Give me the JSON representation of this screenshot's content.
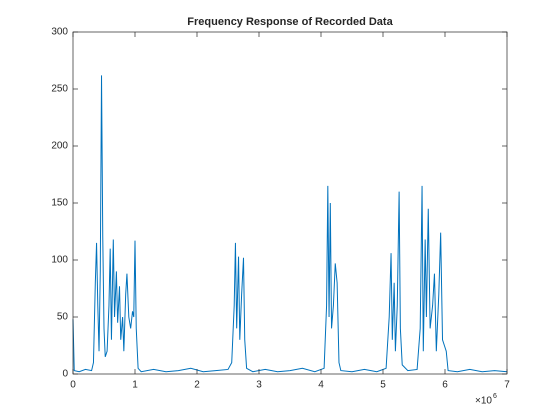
{
  "chart_data": {
    "type": "line",
    "title": "Frequency Response of Recorded Data",
    "x_multiplier": {
      "base": "×10",
      "exponent": "6"
    },
    "x": [
      0,
      20000,
      100000,
      200000,
      300000,
      330000,
      360000,
      380000,
      400000,
      420000,
      440000,
      460000,
      480000,
      500000,
      520000,
      550000,
      580000,
      600000,
      620000,
      650000,
      670000,
      700000,
      720000,
      750000,
      770000,
      800000,
      820000,
      850000,
      870000,
      900000,
      930000,
      960000,
      980000,
      1000000,
      1020000,
      1050000,
      1100000,
      1300000,
      1500000,
      1700000,
      1900000,
      2100000,
      2300000,
      2500000,
      2560000,
      2600000,
      2620000,
      2640000,
      2670000,
      2690000,
      2720000,
      2750000,
      2770000,
      2800000,
      2900000,
      3100000,
      3300000,
      3500000,
      3700000,
      3900000,
      4050000,
      4090000,
      4110000,
      4130000,
      4150000,
      4170000,
      4200000,
      4230000,
      4260000,
      4290000,
      4320000,
      4500000,
      4700000,
      4900000,
      5050000,
      5100000,
      5130000,
      5150000,
      5180000,
      5200000,
      5230000,
      5260000,
      5280000,
      5310000,
      5400000,
      5550000,
      5600000,
      5630000,
      5650000,
      5680000,
      5700000,
      5730000,
      5760000,
      5800000,
      5830000,
      5860000,
      5900000,
      5930000,
      5960000,
      5990000,
      6020000,
      6050000,
      6200000,
      6400000,
      6600000,
      6800000,
      7000000
    ],
    "series": [
      {
        "color": "#0072bd",
        "values": [
          48,
          3,
          2,
          4,
          3,
          10,
          80,
          115,
          60,
          20,
          90,
          262,
          120,
          40,
          15,
          20,
          60,
          110,
          30,
          118,
          50,
          90,
          45,
          77,
          30,
          50,
          20,
          70,
          88,
          50,
          40,
          55,
          50,
          117,
          40,
          5,
          2,
          4,
          2,
          3,
          5,
          2,
          3,
          4,
          10,
          60,
          115,
          40,
          103,
          30,
          70,
          102,
          30,
          5,
          2,
          4,
          2,
          3,
          5,
          2,
          5,
          60,
          165,
          50,
          150,
          40,
          60,
          97,
          80,
          10,
          3,
          2,
          4,
          2,
          5,
          50,
          106,
          30,
          80,
          20,
          60,
          160,
          40,
          8,
          3,
          4,
          40,
          165,
          20,
          118,
          50,
          145,
          40,
          60,
          88,
          20,
          70,
          124,
          30,
          25,
          20,
          3,
          2,
          4,
          2,
          3,
          2
        ]
      }
    ],
    "xlim": [
      0,
      7000000
    ],
    "xticks": [
      {
        "value": 0,
        "label": "0"
      },
      {
        "value": 1000000,
        "label": "1"
      },
      {
        "value": 2000000,
        "label": "2"
      },
      {
        "value": 3000000,
        "label": "3"
      },
      {
        "value": 4000000,
        "label": "4"
      },
      {
        "value": 5000000,
        "label": "5"
      },
      {
        "value": 6000000,
        "label": "6"
      },
      {
        "value": 7000000,
        "label": "7"
      }
    ],
    "ylim": [
      0,
      300
    ],
    "yticks": [
      0,
      50,
      100,
      150,
      200,
      250,
      300
    ],
    "grid": false
  }
}
